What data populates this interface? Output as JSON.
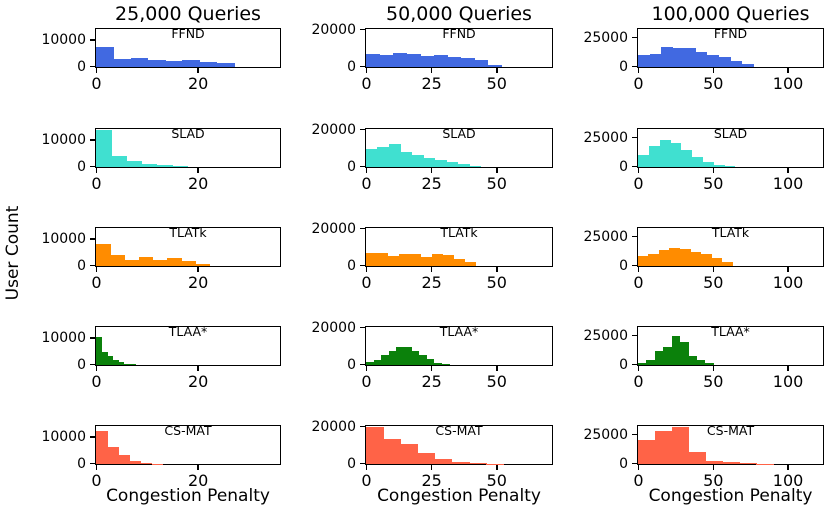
{
  "figure": {
    "ylabel": "User Count",
    "background": "#ffffff",
    "axis_color": "#000000"
  },
  "chart_data": {
    "type": "bar",
    "subtype": "histogram-grid",
    "grid": "off",
    "ylabel": "User Count",
    "columns": [
      {
        "title": "25,000 Queries",
        "xlabel": "Congestion Penalty",
        "xlim": [
          0,
          36
        ],
        "xticks": [
          0,
          20
        ],
        "ylim": [
          0,
          14000
        ],
        "yticks": [
          0,
          10000
        ]
      },
      {
        "title": "50,000 Queries",
        "xlabel": "Congestion Penalty",
        "xlim": [
          0,
          71
        ],
        "xticks": [
          0,
          25,
          50
        ],
        "ylim": [
          0,
          20000
        ],
        "yticks": [
          0,
          20000
        ]
      },
      {
        "title": "100,000 Queries",
        "xlabel": "Congestion Penalty",
        "xlim": [
          0,
          123
        ],
        "xticks": [
          0,
          50,
          100
        ],
        "ylim": [
          0,
          32000
        ],
        "yticks": [
          0,
          25000
        ]
      }
    ],
    "rows": [
      {
        "label": "FFND",
        "color": "#4169e1",
        "histograms": [
          {
            "bin_start": 0,
            "bin_width": 3.4,
            "counts": [
              7500,
              3100,
              3600,
              2500,
              2400,
              2500,
              1900,
              1400
            ]
          },
          {
            "bin_start": 0,
            "bin_width": 5.2,
            "counts": [
              7000,
              6500,
              7500,
              7000,
              6100,
              6500,
              5500,
              4700,
              3900,
              1300
            ]
          },
          {
            "bin_start": 0,
            "bin_width": 7.7,
            "counts": [
              10000,
              11500,
              17500,
              16200,
              16500,
              13000,
              10200,
              8300,
              5000,
              2700
            ]
          }
        ]
      },
      {
        "label": "SLAD",
        "color": "#40e0d0",
        "histograms": [
          {
            "bin_start": 0,
            "bin_width": 3.0,
            "counts": [
              14000,
              4000,
              2300,
              1200,
              600,
              250
            ]
          },
          {
            "bin_start": 0,
            "bin_width": 4.4,
            "counts": [
              10000,
              11000,
              12500,
              8000,
              6500,
              5000,
              3700,
              2700,
              1700,
              700
            ]
          },
          {
            "bin_start": 0,
            "bin_width": 7.2,
            "counts": [
              10000,
              18000,
              23000,
              21000,
              15000,
              8500,
              4300,
              2000,
              700
            ]
          }
        ]
      },
      {
        "label": "TLATk",
        "color": "#ff8c00",
        "histograms": [
          {
            "bin_start": 0,
            "bin_width": 2.8,
            "counts": [
              8500,
              4000,
              2400,
              3400,
              2400,
              2900,
              1800,
              700
            ]
          },
          {
            "bin_start": 0,
            "bin_width": 4.2,
            "counts": [
              7000,
              6800,
              5500,
              6500,
              6300,
              5000,
              6500,
              6000,
              4000,
              2200
            ]
          },
          {
            "bin_start": 0,
            "bin_width": 7.0,
            "counts": [
              8500,
              10500,
              13500,
              15500,
              14500,
              12500,
              10000,
              7000,
              3800
            ]
          }
        ]
      },
      {
        "label": "TLAA*",
        "color": "#0b810b",
        "histograms": [
          {
            "bin_start": 0,
            "bin_width": 1.1,
            "counts": [
              10500,
              4800,
              3600,
              1900,
              1000,
              500,
              250
            ]
          },
          {
            "bin_start": 0,
            "bin_width": 2.9,
            "counts": [
              1500,
              2600,
              5500,
              7800,
              9800,
              10000,
              7800,
              5600,
              3200,
              1300,
              400
            ]
          },
          {
            "bin_start": 0,
            "bin_width": 5.6,
            "counts": [
              1500,
              4500,
              12500,
              16000,
              25000,
              19500,
              8000,
              4200,
              1400
            ]
          }
        ]
      },
      {
        "label": "CS-MAT",
        "color": "#ff6347",
        "histograms": [
          {
            "bin_start": 0,
            "bin_width": 2.2,
            "counts": [
              12500,
              6500,
              3300,
              1200,
              350,
              150
            ]
          },
          {
            "bin_start": 0,
            "bin_width": 6.6,
            "counts": [
              20000,
              13500,
              11000,
              6000,
              2800,
              1300,
              600,
              250
            ]
          },
          {
            "bin_start": 0,
            "bin_width": 11.3,
            "counts": [
              21000,
              28500,
              32000,
              10000,
              2400,
              1400,
              700,
              350
            ]
          }
        ]
      }
    ]
  }
}
